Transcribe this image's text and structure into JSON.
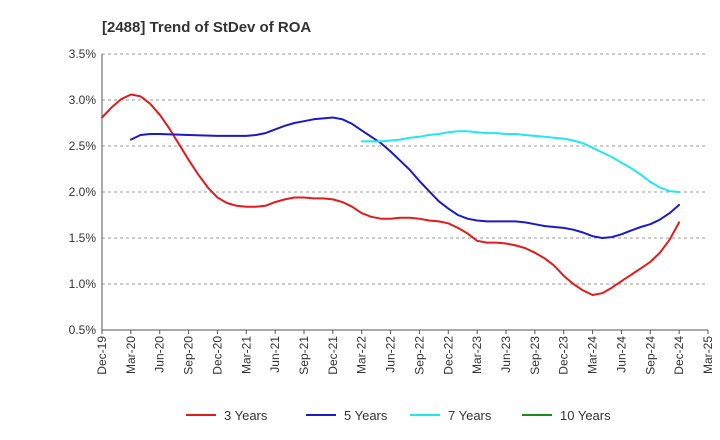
{
  "chart_data": {
    "type": "line",
    "title": "[2488]  Trend of StDev of ROA",
    "xlabel": "",
    "ylabel": "",
    "x_ticks": [
      "Dec-19",
      "Mar-20",
      "Jun-20",
      "Sep-20",
      "Dec-20",
      "Mar-21",
      "Jun-21",
      "Sep-21",
      "Dec-21",
      "Mar-22",
      "Jun-22",
      "Sep-22",
      "Dec-22",
      "Mar-23",
      "Jun-23",
      "Sep-23",
      "Dec-23",
      "Mar-24",
      "Jun-24",
      "Sep-24",
      "Dec-24",
      "Mar-25"
    ],
    "y_ticks": [
      "0.5%",
      "1.0%",
      "1.5%",
      "2.0%",
      "2.5%",
      "3.0%",
      "3.5%"
    ],
    "ylim": [
      0.5,
      3.5
    ],
    "grid": "horizontal dashed",
    "legend_position": "bottom",
    "series": [
      {
        "name": "3 Years",
        "color": "#e01c1c",
        "points": [
          [
            "Dec-19",
            2.81
          ],
          [
            "Jan-20",
            2.92
          ],
          [
            "Feb-20",
            3.01
          ],
          [
            "Mar-20",
            3.06
          ],
          [
            "Apr-20",
            3.04
          ],
          [
            "May-20",
            2.96
          ],
          [
            "Jun-20",
            2.84
          ],
          [
            "Jul-20",
            2.69
          ],
          [
            "Aug-20",
            2.52
          ],
          [
            "Sep-20",
            2.35
          ],
          [
            "Oct-20",
            2.19
          ],
          [
            "Nov-20",
            2.05
          ],
          [
            "Dec-20",
            1.94
          ],
          [
            "Jan-21",
            1.88
          ],
          [
            "Feb-21",
            1.85
          ],
          [
            "Mar-21",
            1.84
          ],
          [
            "Apr-21",
            1.84
          ],
          [
            "May-21",
            1.85
          ],
          [
            "Jun-21",
            1.89
          ],
          [
            "Jul-21",
            1.92
          ],
          [
            "Aug-21",
            1.94
          ],
          [
            "Sep-21",
            1.94
          ],
          [
            "Oct-21",
            1.93
          ],
          [
            "Nov-21",
            1.93
          ],
          [
            "Dec-21",
            1.92
          ],
          [
            "Jan-22",
            1.89
          ],
          [
            "Feb-22",
            1.84
          ],
          [
            "Mar-22",
            1.77
          ],
          [
            "Apr-22",
            1.73
          ],
          [
            "May-22",
            1.71
          ],
          [
            "Jun-22",
            1.71
          ],
          [
            "Jul-22",
            1.72
          ],
          [
            "Aug-22",
            1.72
          ],
          [
            "Sep-22",
            1.71
          ],
          [
            "Oct-22",
            1.69
          ],
          [
            "Nov-22",
            1.68
          ],
          [
            "Dec-22",
            1.66
          ],
          [
            "Jan-23",
            1.61
          ],
          [
            "Feb-23",
            1.55
          ],
          [
            "Mar-23",
            1.47
          ],
          [
            "Apr-23",
            1.45
          ],
          [
            "May-23",
            1.45
          ],
          [
            "Jun-23",
            1.44
          ],
          [
            "Jul-23",
            1.42
          ],
          [
            "Aug-23",
            1.39
          ],
          [
            "Sep-23",
            1.34
          ],
          [
            "Oct-23",
            1.28
          ],
          [
            "Nov-23",
            1.2
          ],
          [
            "Dec-23",
            1.09
          ],
          [
            "Jan-24",
            1.0
          ],
          [
            "Feb-24",
            0.93
          ],
          [
            "Mar-24",
            0.88
          ],
          [
            "Apr-24",
            0.9
          ],
          [
            "May-24",
            0.96
          ],
          [
            "Jun-24",
            1.03
          ],
          [
            "Jul-24",
            1.1
          ],
          [
            "Aug-24",
            1.17
          ],
          [
            "Sep-24",
            1.24
          ],
          [
            "Oct-24",
            1.34
          ],
          [
            "Nov-24",
            1.48
          ],
          [
            "Dec-24",
            1.67
          ]
        ]
      },
      {
        "name": "5 Years",
        "color": "#1a1ac8",
        "points": [
          [
            "Mar-20",
            2.57
          ],
          [
            "Apr-20",
            2.62
          ],
          [
            "May-20",
            2.63
          ],
          [
            "Jun-20",
            2.63
          ],
          [
            "Sep-20",
            2.62
          ],
          [
            "Dec-20",
            2.61
          ],
          [
            "Mar-21",
            2.61
          ],
          [
            "Apr-21",
            2.62
          ],
          [
            "May-21",
            2.64
          ],
          [
            "Jun-21",
            2.68
          ],
          [
            "Jul-21",
            2.72
          ],
          [
            "Aug-21",
            2.75
          ],
          [
            "Sep-21",
            2.77
          ],
          [
            "Oct-21",
            2.79
          ],
          [
            "Nov-21",
            2.8
          ],
          [
            "Dec-21",
            2.81
          ],
          [
            "Jan-22",
            2.79
          ],
          [
            "Feb-22",
            2.74
          ],
          [
            "Mar-22",
            2.67
          ],
          [
            "Apr-22",
            2.6
          ],
          [
            "May-22",
            2.53
          ],
          [
            "Jun-22",
            2.44
          ],
          [
            "Jul-22",
            2.34
          ],
          [
            "Aug-22",
            2.24
          ],
          [
            "Sep-22",
            2.12
          ],
          [
            "Oct-22",
            2.01
          ],
          [
            "Nov-22",
            1.9
          ],
          [
            "Dec-22",
            1.82
          ],
          [
            "Jan-23",
            1.75
          ],
          [
            "Feb-23",
            1.71
          ],
          [
            "Mar-23",
            1.69
          ],
          [
            "Apr-23",
            1.68
          ],
          [
            "May-23",
            1.68
          ],
          [
            "Jun-23",
            1.68
          ],
          [
            "Jul-23",
            1.68
          ],
          [
            "Aug-23",
            1.67
          ],
          [
            "Sep-23",
            1.65
          ],
          [
            "Oct-23",
            1.63
          ],
          [
            "Nov-23",
            1.62
          ],
          [
            "Dec-23",
            1.61
          ],
          [
            "Jan-24",
            1.59
          ],
          [
            "Feb-24",
            1.56
          ],
          [
            "Mar-24",
            1.52
          ],
          [
            "Apr-24",
            1.5
          ],
          [
            "May-24",
            1.51
          ],
          [
            "Jun-24",
            1.54
          ],
          [
            "Jul-24",
            1.58
          ],
          [
            "Aug-24",
            1.62
          ],
          [
            "Sep-24",
            1.65
          ],
          [
            "Oct-24",
            1.7
          ],
          [
            "Nov-24",
            1.77
          ],
          [
            "Dec-24",
            1.86
          ]
        ]
      },
      {
        "name": "7 Years",
        "color": "#22e6f0",
        "points": [
          [
            "Mar-22",
            2.55
          ],
          [
            "Apr-22",
            2.55
          ],
          [
            "May-22",
            2.55
          ],
          [
            "Jun-22",
            2.56
          ],
          [
            "Jul-22",
            2.57
          ],
          [
            "Aug-22",
            2.59
          ],
          [
            "Sep-22",
            2.6
          ],
          [
            "Oct-22",
            2.62
          ],
          [
            "Nov-22",
            2.63
          ],
          [
            "Dec-22",
            2.65
          ],
          [
            "Jan-23",
            2.66
          ],
          [
            "Feb-23",
            2.66
          ],
          [
            "Mar-23",
            2.65
          ],
          [
            "Apr-23",
            2.64
          ],
          [
            "May-23",
            2.64
          ],
          [
            "Jun-23",
            2.63
          ],
          [
            "Jul-23",
            2.63
          ],
          [
            "Aug-23",
            2.62
          ],
          [
            "Sep-23",
            2.61
          ],
          [
            "Oct-23",
            2.6
          ],
          [
            "Nov-23",
            2.59
          ],
          [
            "Dec-23",
            2.58
          ],
          [
            "Jan-24",
            2.56
          ],
          [
            "Feb-24",
            2.53
          ],
          [
            "Mar-24",
            2.48
          ],
          [
            "Apr-24",
            2.43
          ],
          [
            "May-24",
            2.38
          ],
          [
            "Jun-24",
            2.32
          ],
          [
            "Jul-24",
            2.26
          ],
          [
            "Aug-24",
            2.19
          ],
          [
            "Sep-24",
            2.11
          ],
          [
            "Oct-24",
            2.05
          ],
          [
            "Nov-24",
            2.01
          ],
          [
            "Dec-24",
            2.0
          ]
        ]
      },
      {
        "name": "10 Years",
        "color": "#1a8a1a",
        "points": []
      }
    ]
  }
}
